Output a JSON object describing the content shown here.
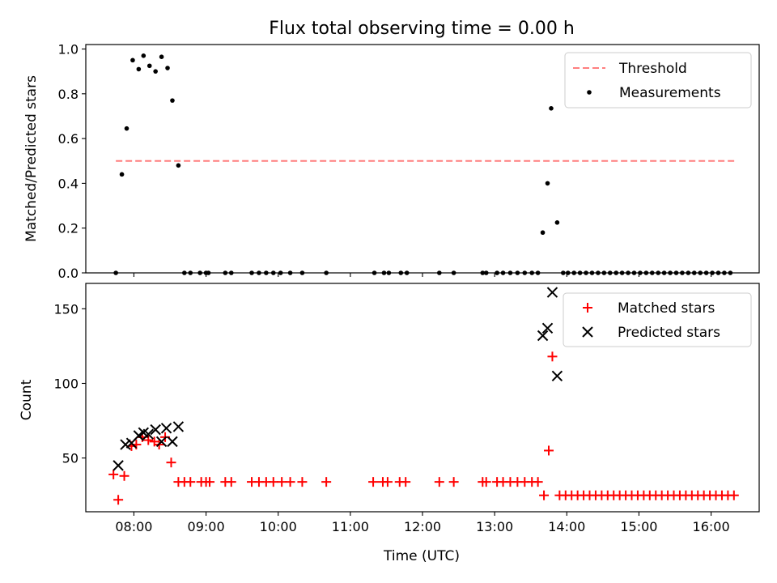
{
  "title": "Flux total observing time = 0.00 h",
  "chart_data": [
    {
      "type": "scatter",
      "ylabel": "Matched/Predicted stars",
      "xlim": [
        "07:20",
        "16:40"
      ],
      "ylim": [
        0,
        1.02
      ],
      "yticks": [
        0.0,
        0.2,
        0.4,
        0.6,
        0.8,
        1.0
      ],
      "ytick_labels": [
        "0.0",
        "0.2",
        "0.4",
        "0.6",
        "0.8",
        "1.0"
      ],
      "legend_position": "upper right",
      "threshold": {
        "name": "Threshold",
        "value": 0.5,
        "x_range": [
          "07:45",
          "16:20"
        ],
        "color": "#ff7f7f",
        "style": "dashed"
      },
      "series": [
        {
          "name": "Measurements",
          "marker": "dot",
          "color": "#000000",
          "points": [
            [
              "07:45",
              0.0
            ],
            [
              "07:50",
              0.44
            ],
            [
              "07:54",
              0.645
            ],
            [
              "07:59",
              0.95
            ],
            [
              "08:04",
              0.91
            ],
            [
              "08:08",
              0.97
            ],
            [
              "08:13",
              0.925
            ],
            [
              "08:18",
              0.9
            ],
            [
              "08:23",
              0.965
            ],
            [
              "08:28",
              0.915
            ],
            [
              "08:32",
              0.77
            ],
            [
              "08:37",
              0.48
            ],
            [
              "08:42",
              0.0
            ],
            [
              "08:47",
              0.0
            ],
            [
              "08:55",
              0.0
            ],
            [
              "09:00",
              0.0
            ],
            [
              "09:02",
              0.0
            ],
            [
              "09:16",
              0.0
            ],
            [
              "09:21",
              0.0
            ],
            [
              "09:38",
              0.0
            ],
            [
              "09:44",
              0.0
            ],
            [
              "09:50",
              0.0
            ],
            [
              "09:56",
              0.0
            ],
            [
              "10:02",
              0.0
            ],
            [
              "10:10",
              0.0
            ],
            [
              "10:20",
              0.0
            ],
            [
              "10:40",
              0.0
            ],
            [
              "11:20",
              0.0
            ],
            [
              "11:28",
              0.0
            ],
            [
              "11:32",
              0.0
            ],
            [
              "11:42",
              0.0
            ],
            [
              "11:47",
              0.0
            ],
            [
              "12:14",
              0.0
            ],
            [
              "12:26",
              0.0
            ],
            [
              "12:50",
              0.0
            ],
            [
              "12:53",
              0.0
            ],
            [
              "13:02",
              0.0
            ],
            [
              "13:07",
              0.0
            ],
            [
              "13:13",
              0.0
            ],
            [
              "13:19",
              0.0
            ],
            [
              "13:25",
              0.0
            ],
            [
              "13:31",
              0.0
            ],
            [
              "13:36",
              0.0
            ],
            [
              "13:40",
              0.18
            ],
            [
              "13:44",
              0.4
            ],
            [
              "13:47",
              0.735
            ],
            [
              "13:52",
              0.225
            ],
            [
              "13:57",
              0.0
            ],
            [
              "14:01",
              0.0
            ],
            [
              "14:06",
              0.0
            ],
            [
              "14:11",
              0.0
            ],
            [
              "14:16",
              0.0
            ],
            [
              "14:21",
              0.0
            ],
            [
              "14:26",
              0.0
            ],
            [
              "14:31",
              0.0
            ],
            [
              "14:36",
              0.0
            ],
            [
              "14:41",
              0.0
            ],
            [
              "14:46",
              0.0
            ],
            [
              "14:51",
              0.0
            ],
            [
              "14:56",
              0.0
            ],
            [
              "15:01",
              0.0
            ],
            [
              "15:06",
              0.0
            ],
            [
              "15:11",
              0.0
            ],
            [
              "15:16",
              0.0
            ],
            [
              "15:21",
              0.0
            ],
            [
              "15:26",
              0.0
            ],
            [
              "15:31",
              0.0
            ],
            [
              "15:36",
              0.0
            ],
            [
              "15:41",
              0.0
            ],
            [
              "15:46",
              0.0
            ],
            [
              "15:51",
              0.0
            ],
            [
              "15:56",
              0.0
            ],
            [
              "16:01",
              0.0
            ],
            [
              "16:06",
              0.0
            ],
            [
              "16:11",
              0.0
            ],
            [
              "16:16",
              0.0
            ]
          ]
        }
      ]
    },
    {
      "type": "scatter",
      "xlabel": "Time (UTC)",
      "ylabel": "Count",
      "xlim": [
        "07:20",
        "16:40"
      ],
      "ylim": [
        14,
        167
      ],
      "xticks": [
        "08:00",
        "09:00",
        "10:00",
        "11:00",
        "12:00",
        "13:00",
        "14:00",
        "15:00",
        "16:00"
      ],
      "yticks": [
        50,
        100,
        150
      ],
      "ytick_labels": [
        "50",
        "100",
        "150"
      ],
      "legend_position": "upper right",
      "series": [
        {
          "name": "Matched stars",
          "marker": "plus",
          "color": "#ff0000",
          "points": [
            [
              "07:43",
              39
            ],
            [
              "07:47",
              22
            ],
            [
              "07:52",
              38
            ],
            [
              "07:58",
              58
            ],
            [
              "08:02",
              59
            ],
            [
              "08:07",
              64
            ],
            [
              "08:12",
              62
            ],
            [
              "08:17",
              61
            ],
            [
              "08:21",
              59
            ],
            [
              "08:26",
              64
            ],
            [
              "08:31",
              47
            ],
            [
              "08:37",
              34
            ],
            [
              "08:42",
              34
            ],
            [
              "08:47",
              34
            ],
            [
              "08:56",
              34
            ],
            [
              "09:00",
              34
            ],
            [
              "09:03",
              34
            ],
            [
              "09:16",
              34
            ],
            [
              "09:21",
              34
            ],
            [
              "09:38",
              34
            ],
            [
              "09:44",
              34
            ],
            [
              "09:50",
              34
            ],
            [
              "09:56",
              34
            ],
            [
              "10:03",
              34
            ],
            [
              "10:10",
              34
            ],
            [
              "10:20",
              34
            ],
            [
              "10:40",
              34
            ],
            [
              "11:19",
              34
            ],
            [
              "11:27",
              34
            ],
            [
              "11:31",
              34
            ],
            [
              "11:41",
              34
            ],
            [
              "11:46",
              34
            ],
            [
              "12:14",
              34
            ],
            [
              "12:26",
              34
            ],
            [
              "12:50",
              34
            ],
            [
              "12:53",
              34
            ],
            [
              "13:02",
              34
            ],
            [
              "13:07",
              34
            ],
            [
              "13:13",
              34
            ],
            [
              "13:19",
              34
            ],
            [
              "13:25",
              34
            ],
            [
              "13:31",
              34
            ],
            [
              "13:36",
              34
            ],
            [
              "13:41",
              25
            ],
            [
              "13:45",
              55
            ],
            [
              "13:48",
              118
            ],
            [
              "13:54",
              25
            ],
            [
              "13:59",
              25
            ],
            [
              "14:04",
              25
            ],
            [
              "14:09",
              25
            ],
            [
              "14:14",
              25
            ],
            [
              "14:19",
              25
            ],
            [
              "14:24",
              25
            ],
            [
              "14:29",
              25
            ],
            [
              "14:34",
              25
            ],
            [
              "14:39",
              25
            ],
            [
              "14:44",
              25
            ],
            [
              "14:49",
              25
            ],
            [
              "14:54",
              25
            ],
            [
              "14:59",
              25
            ],
            [
              "15:04",
              25
            ],
            [
              "15:09",
              25
            ],
            [
              "15:14",
              25
            ],
            [
              "15:19",
              25
            ],
            [
              "15:24",
              25
            ],
            [
              "15:29",
              25
            ],
            [
              "15:34",
              25
            ],
            [
              "15:39",
              25
            ],
            [
              "15:44",
              25
            ],
            [
              "15:49",
              25
            ],
            [
              "15:54",
              25
            ],
            [
              "15:59",
              25
            ],
            [
              "16:04",
              25
            ],
            [
              "16:09",
              25
            ],
            [
              "16:14",
              25
            ],
            [
              "16:19",
              25
            ]
          ]
        },
        {
          "name": "Predicted stars",
          "marker": "x",
          "color": "#000000",
          "points": [
            [
              "07:47",
              45
            ],
            [
              "07:53",
              59
            ],
            [
              "07:58",
              60
            ],
            [
              "08:04",
              65
            ],
            [
              "08:08",
              67
            ],
            [
              "08:12",
              66
            ],
            [
              "08:18",
              69
            ],
            [
              "08:23",
              61
            ],
            [
              "08:27",
              70
            ],
            [
              "08:32",
              61
            ],
            [
              "08:37",
              71
            ],
            [
              "13:40",
              132
            ],
            [
              "13:44",
              137
            ],
            [
              "13:48",
              161
            ],
            [
              "13:52",
              105
            ]
          ]
        }
      ]
    }
  ]
}
